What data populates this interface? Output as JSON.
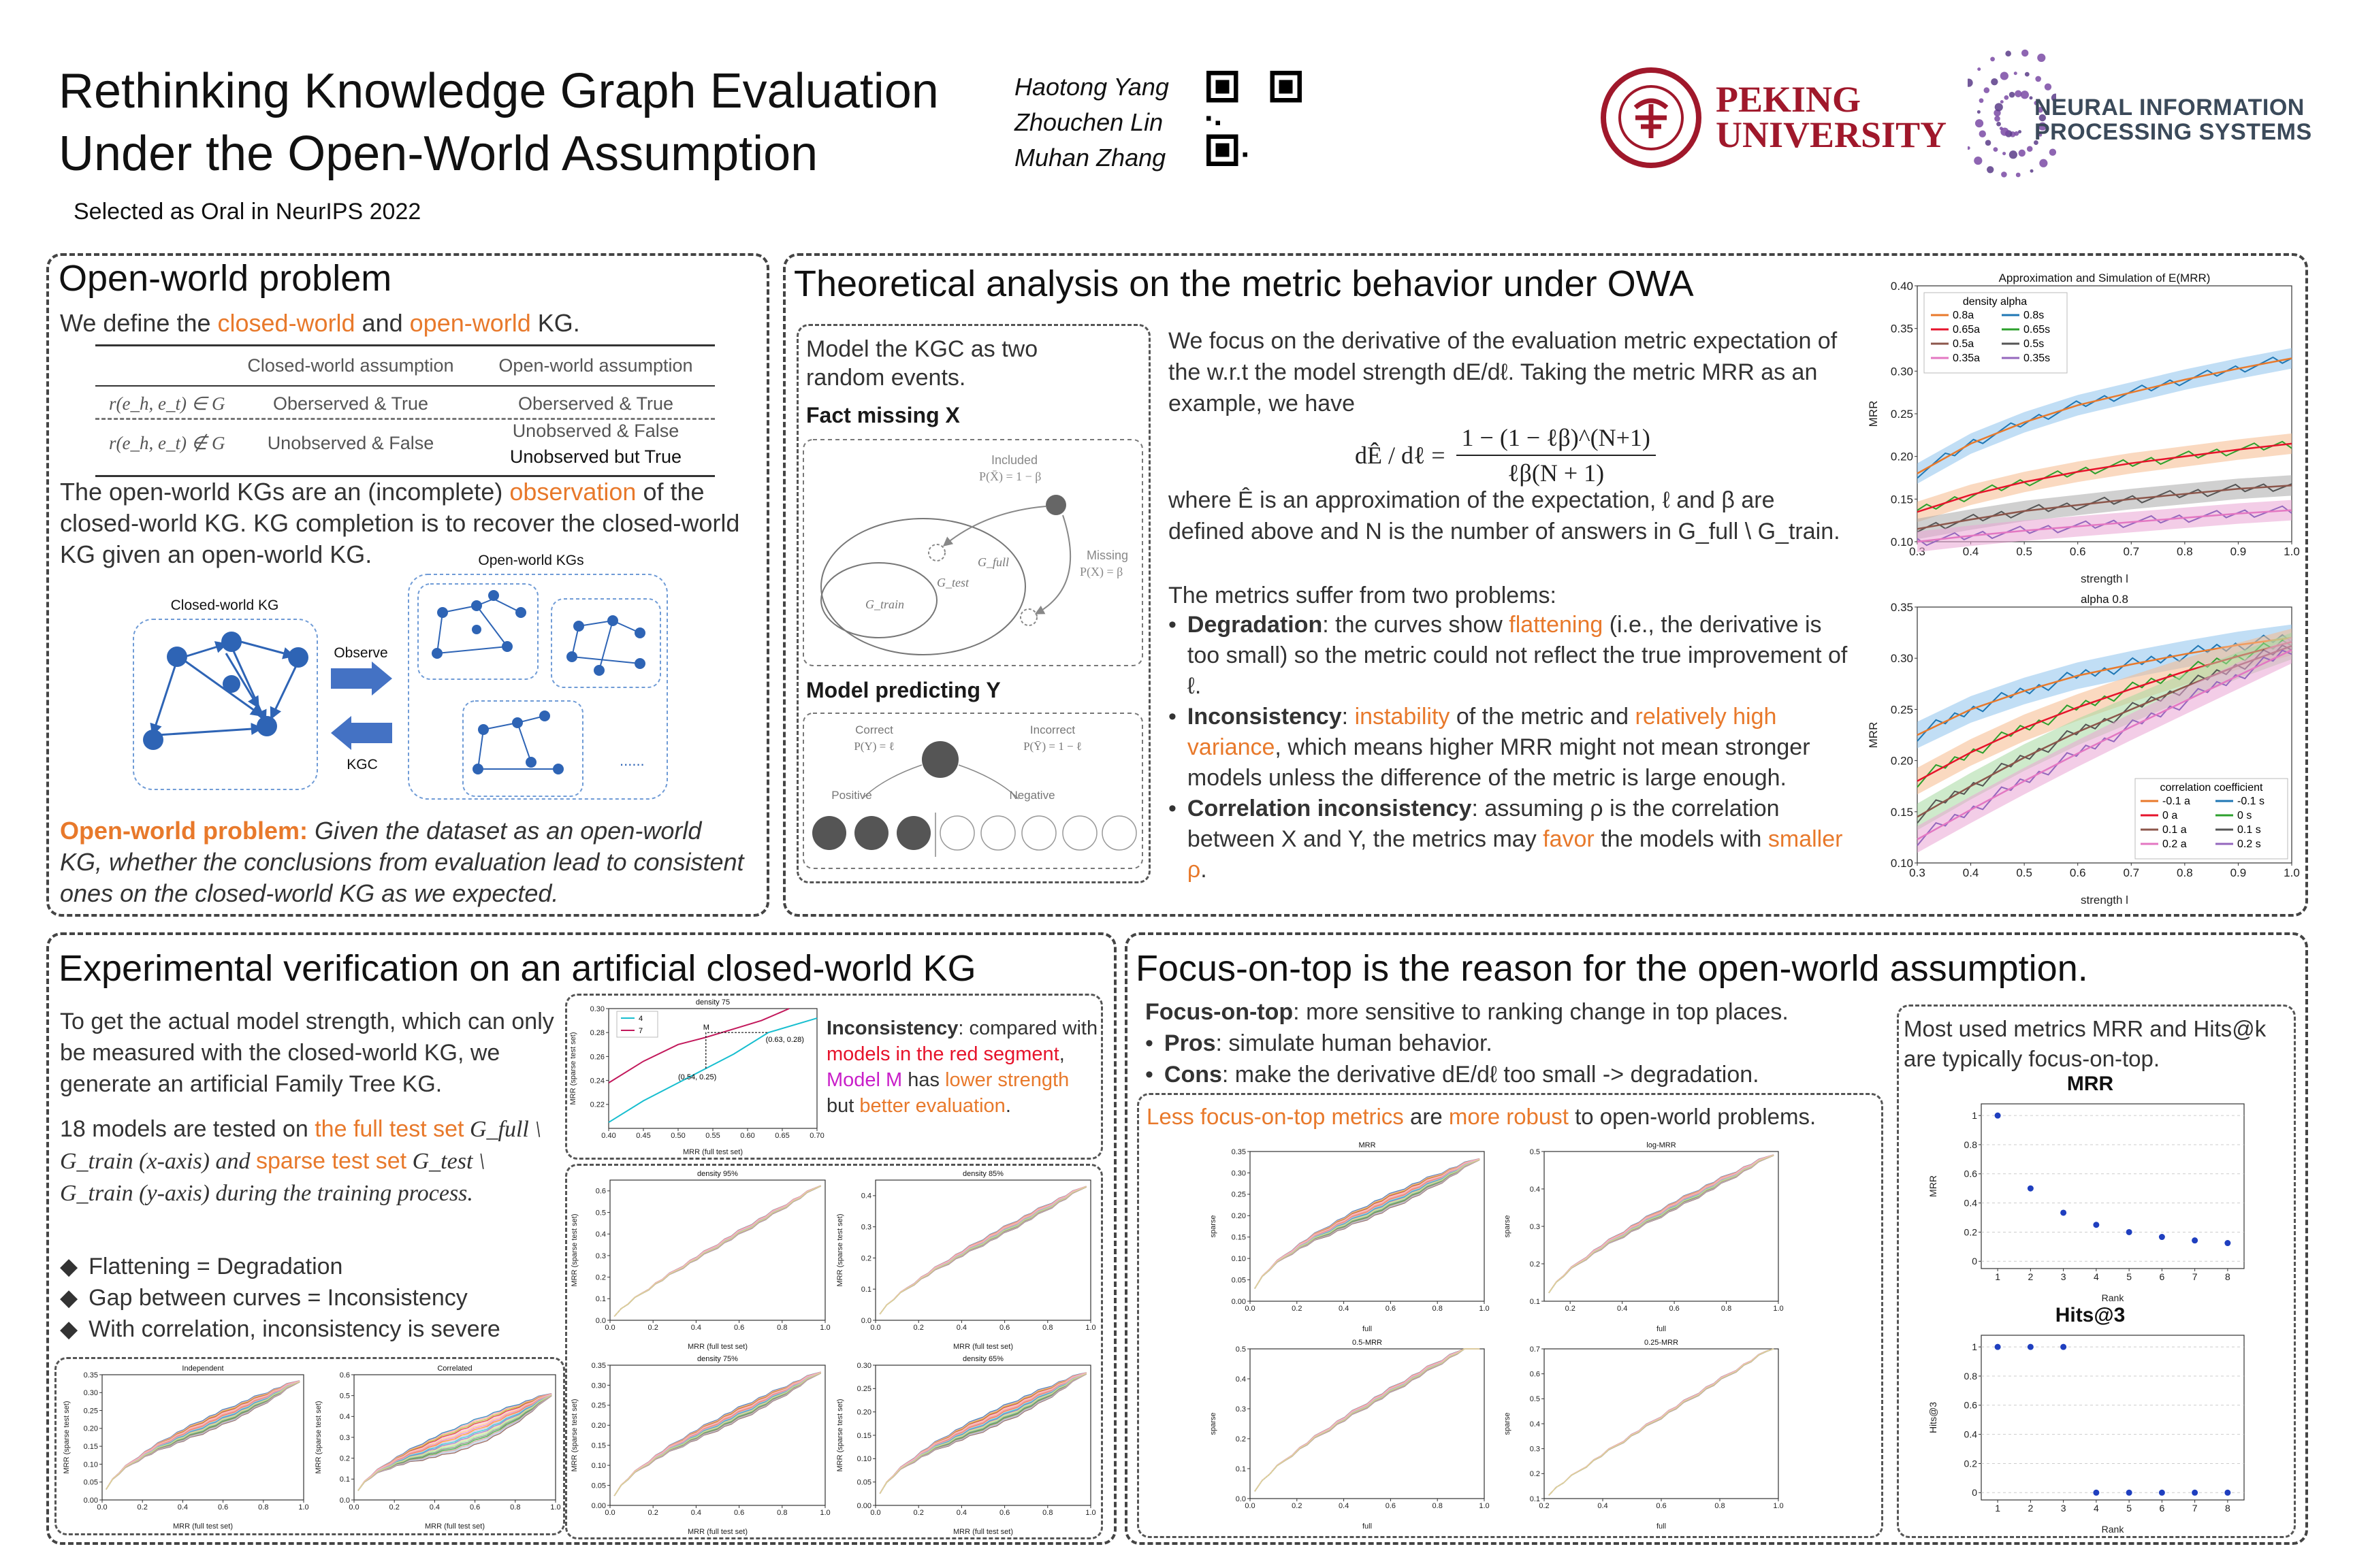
{
  "header": {
    "title": [
      "Rethinking Knowledge Graph Evaluation",
      "Under the Open-World Assumption"
    ],
    "subtitle": "Selected as Oral in NeurIPS 2022",
    "authors": [
      "Haotong Yang",
      "Zhouchen Lin",
      "Muhan Zhang"
    ],
    "pku": [
      "PEKING",
      "UNIVERSITY"
    ],
    "neurips": [
      "NEURAL INFORMATION",
      "PROCESSING SYSTEMS"
    ]
  },
  "open_world": {
    "title": "Open-world problem",
    "intro": [
      "We define the ",
      "closed-world",
      " and ",
      "open-world",
      " KG."
    ],
    "table": {
      "headers": [
        "Closed-world assumption",
        "Open-world assumption"
      ],
      "rows": [
        {
          "label": "r(e_h, e_t) ∈ G",
          "closed": "Oberserved & True",
          "open": "Oberserved & True"
        },
        {
          "label": "r(e_h, e_t) ∉ G",
          "closed": "Unobserved & False",
          "open": "Unobserved & False",
          "open2": "Unobserved but True"
        }
      ]
    },
    "para": [
      "The open-world KGs are an (incomplete) ",
      "observation",
      " of the closed-world KG. KG completion is to recover the closed-world KG given an open-world KG."
    ],
    "fig": {
      "closed_label": "Closed-world KG",
      "open_label": "Open-world KGs",
      "observe": "Observe",
      "kgc": "KGC",
      "dots": "......"
    },
    "problem_label": "Open-world problem:",
    "problem_text": "Given the dataset as an open-world KG, whether the conclusions from evaluation lead to consistent ones on the closed-world KG as we expected."
  },
  "theory": {
    "title": "Theoretical analysis on the metric behavior under OWA",
    "model": {
      "intro": "Model the KGC as two random events.",
      "fact_missing": "Fact missing X",
      "included": "Included",
      "included_p": "P(X̄) = 1 − β",
      "missing": "Missing",
      "missing_p": "P(X) = β",
      "gfull": "G_full",
      "gtest": "G_test",
      "gtrain": "G_train",
      "model_predicting": "Model predicting Y",
      "correct": "Correct",
      "correct_p": "P(Y) = ℓ",
      "incorrect": "Incorrect",
      "incorrect_p": "P(Ȳ) = 1 − ℓ",
      "positive": "Positive",
      "negative": "Negative"
    },
    "text1": "We focus on the derivative of the evaluation metric expectation of the w.r.t the model strength dE/dℓ. Taking the metric MRR as an example, we have",
    "formula_lhs": "dÊ / dℓ =",
    "formula_num": "1 − (1 − ℓβ)^(N+1)",
    "formula_den": "ℓβ(N + 1)",
    "text2": "where Ê is an approximation of the expectation, ℓ and β are defined above and N is the number of answers in G_full \\ G_train.",
    "problems_intro": "The metrics suffer from two problems:",
    "bullets": [
      {
        "head": "Degradation",
        "t1": ": the curves show ",
        "o1": "flattening",
        "t2": " (i.e., the derivative is too small) so the metric could not reflect the true improvement of ℓ."
      },
      {
        "head": "Inconsistency",
        "t1": ": ",
        "o1": "instability",
        "t2": " of the metric and ",
        "o2": "relatively high variance",
        "t3": ", which means higher MRR might not mean stronger models unless the difference of the metric is large enough."
      },
      {
        "head": "Correlation inconsistency",
        "t1": ": assuming ρ is the correlation between X and Y, the metrics may ",
        "o1": "favor",
        "t2": " the models with ",
        "o2": "smaller ρ",
        "t3": "."
      }
    ]
  },
  "experimental": {
    "title": "Experimental verification on an artificial closed-world KG",
    "p1": "To get the actual model strength, which can only be measured with the closed-world KG, we generate an artificial Family Tree KG.",
    "p2": [
      "18 models are tested on ",
      "the full test set",
      " G_full \\ G_train (x-axis) and ",
      "sparse test set",
      " G_test \\ G_train (y-axis) during the training process."
    ],
    "bullets": [
      "Flattening = Degradation",
      "Gap between curves = Inconsistency",
      "With correlation, inconsistency is severe"
    ],
    "inconsistency": [
      "Inconsistency",
      ": compared with ",
      "models in the red segment",
      ", ",
      "Model M",
      " has ",
      "lower strength",
      " but ",
      "better evaluation",
      "."
    ]
  },
  "focus": {
    "title": "Focus-on-top is the reason for the open-world assumption.",
    "def": [
      "Focus-on-top",
      ": more sensitive to ranking change in top places."
    ],
    "pros": [
      "Pros",
      ": simulate human behavior."
    ],
    "cons": [
      "Cons",
      ": make the derivative dE/dℓ too small -> degradation."
    ],
    "robust": [
      "Less focus-on-top metrics",
      " are ",
      "more robust",
      " to open-world problems."
    ],
    "most_used": "Most used metrics MRR and Hits@k are typically focus-on-top."
  },
  "chart_data": [
    {
      "id": "approx_sim",
      "type": "line",
      "title": "Approximation and Simulation of E(MRR)",
      "xlabel": "strength l",
      "ylabel": "MRR",
      "xlim": [
        0.3,
        1.0
      ],
      "ylim": [
        0.1,
        0.4
      ],
      "legend_title": "density alpha",
      "legend_placement": "top-left",
      "legend": [
        "0.8a",
        "0.65a",
        "0.5a",
        "0.35a",
        "0.8s",
        "0.65s",
        "0.5s",
        "0.35s"
      ],
      "x": [
        0.3,
        0.4,
        0.5,
        0.6,
        0.7,
        0.8,
        0.9,
        1.0
      ],
      "series": [
        {
          "name": "0.8a",
          "color": "#e8792b",
          "values": [
            0.18,
            0.215,
            0.24,
            0.26,
            0.275,
            0.29,
            0.303,
            0.315
          ]
        },
        {
          "name": "0.65a",
          "color": "#e6132b",
          "values": [
            0.135,
            0.155,
            0.17,
            0.182,
            0.192,
            0.2,
            0.208,
            0.215
          ]
        },
        {
          "name": "0.5a",
          "color": "#8c564b",
          "values": [
            0.115,
            0.126,
            0.136,
            0.143,
            0.15,
            0.156,
            0.162,
            0.166
          ]
        },
        {
          "name": "0.35a",
          "color": "#e377c2",
          "values": [
            0.1,
            0.107,
            0.113,
            0.118,
            0.123,
            0.128,
            0.133,
            0.137
          ]
        }
      ]
    },
    {
      "id": "alpha08",
      "type": "line",
      "title": "alpha 0.8",
      "xlabel": "strength l",
      "ylabel": "MRR",
      "xlim": [
        0.3,
        1.0
      ],
      "ylim": [
        0.1,
        0.35
      ],
      "legend_title": "correlation coefficient",
      "legend_placement": "bottom-right",
      "legend": [
        "-0.1 a",
        "0 a",
        "0.1 a",
        "0.2 a",
        "-0.1 s",
        "0 s",
        "0.1 s",
        "0.2 s"
      ],
      "x": [
        0.3,
        0.4,
        0.5,
        0.6,
        0.7,
        0.8,
        0.9,
        1.0
      ],
      "series": [
        {
          "name": "-0.1 a",
          "color": "#e8792b",
          "values": [
            0.225,
            0.25,
            0.268,
            0.283,
            0.294,
            0.304,
            0.313,
            0.32
          ]
        },
        {
          "name": "0 a",
          "color": "#e6132b",
          "values": [
            0.18,
            0.208,
            0.232,
            0.252,
            0.27,
            0.287,
            0.302,
            0.316
          ]
        },
        {
          "name": "0.1 a",
          "color": "#8c564b",
          "values": [
            0.145,
            0.175,
            0.203,
            0.228,
            0.25,
            0.272,
            0.293,
            0.312
          ]
        },
        {
          "name": "0.2 a",
          "color": "#e377c2",
          "values": [
            0.123,
            0.152,
            0.18,
            0.207,
            0.233,
            0.258,
            0.283,
            0.308
          ]
        }
      ]
    },
    {
      "id": "mrr_rank",
      "type": "scatter",
      "title": "MRR",
      "xlabel": "Rank",
      "ylabel": "MRR",
      "x": [
        1,
        2,
        3,
        4,
        5,
        6,
        7,
        8
      ],
      "values": [
        1,
        0.5,
        0.333,
        0.25,
        0.2,
        0.167,
        0.143,
        0.125
      ],
      "ylim": [
        0,
        1
      ]
    },
    {
      "id": "hits3_rank",
      "type": "scatter",
      "title": "Hits@3",
      "xlabel": "Rank",
      "ylabel": "Hits@3",
      "x": [
        1,
        2,
        3,
        4,
        5,
        6,
        7,
        8
      ],
      "values": [
        1,
        1,
        1,
        0,
        0,
        0,
        0,
        0
      ],
      "ylim": [
        0,
        1
      ]
    },
    {
      "id": "density75_zoom",
      "type": "line",
      "title": "density 75",
      "xlabel": "MRR (full test set)",
      "ylabel": "MRR (sparse test set)",
      "xlim": [
        0.4,
        0.7
      ],
      "ylim": [
        0.2,
        0.3
      ],
      "legend": [
        "4",
        "7"
      ],
      "annotations": [
        "M",
        "(0.63, 0.28)",
        "(0.54, 0.25)"
      ]
    },
    {
      "id": "independent",
      "type": "line",
      "title": "Independent",
      "xlabel": "MRR (full test set)",
      "ylabel": "MRR (sparse test set)",
      "xlim": [
        0,
        1
      ],
      "ylim": [
        0,
        0.35
      ]
    },
    {
      "id": "correlated",
      "type": "line",
      "title": "Correlated",
      "xlabel": "MRR (full test set)",
      "ylabel": "MRR (sparse test set)",
      "xlim": [
        0,
        1
      ],
      "ylim": [
        0,
        0.6
      ]
    },
    {
      "id": "density95",
      "type": "line",
      "title": "density 95%",
      "xlabel": "MRR (full test set)",
      "ylabel": "MRR (sparse test set)",
      "xlim": [
        0,
        1
      ],
      "ylim": [
        0,
        0.65
      ]
    },
    {
      "id": "density85",
      "type": "line",
      "title": "density 85%",
      "xlabel": "MRR (full test set)",
      "ylabel": "MRR (sparse test set)",
      "xlim": [
        0,
        1
      ],
      "ylim": [
        0,
        0.45
      ]
    },
    {
      "id": "density75",
      "type": "line",
      "title": "density 75%",
      "xlabel": "MRR (full test set)",
      "ylabel": "MRR (sparse test set)",
      "xlim": [
        0,
        1
      ],
      "ylim": [
        0,
        0.35
      ]
    },
    {
      "id": "density65",
      "type": "line",
      "title": "density 65%",
      "xlabel": "MRR (full test set)",
      "ylabel": "MRR (sparse test set)",
      "xlim": [
        0,
        1
      ],
      "ylim": [
        0,
        0.3
      ]
    },
    {
      "id": "focus_mrr",
      "type": "line",
      "title": "MRR",
      "xlabel": "full",
      "ylabel": "sparse",
      "xlim": [
        0,
        1
      ],
      "ylim": [
        0,
        0.35
      ]
    },
    {
      "id": "focus_logmrr",
      "type": "line",
      "title": "log-MRR",
      "xlabel": "full",
      "ylabel": "sparse",
      "xlim": [
        0.1,
        1
      ],
      "ylim": [
        0.1,
        0.5
      ]
    },
    {
      "id": "focus_05mrr",
      "type": "line",
      "title": "0.5-MRR",
      "xlabel": "full",
      "ylabel": "sparse",
      "xlim": [
        0,
        1
      ],
      "ylim": [
        0,
        0.5
      ]
    },
    {
      "id": "focus_025mrr",
      "type": "line",
      "title": "0.25-MRR",
      "xlabel": "full",
      "ylabel": "sparse",
      "xlim": [
        0.2,
        1
      ],
      "ylim": [
        0.1,
        0.7
      ]
    }
  ]
}
